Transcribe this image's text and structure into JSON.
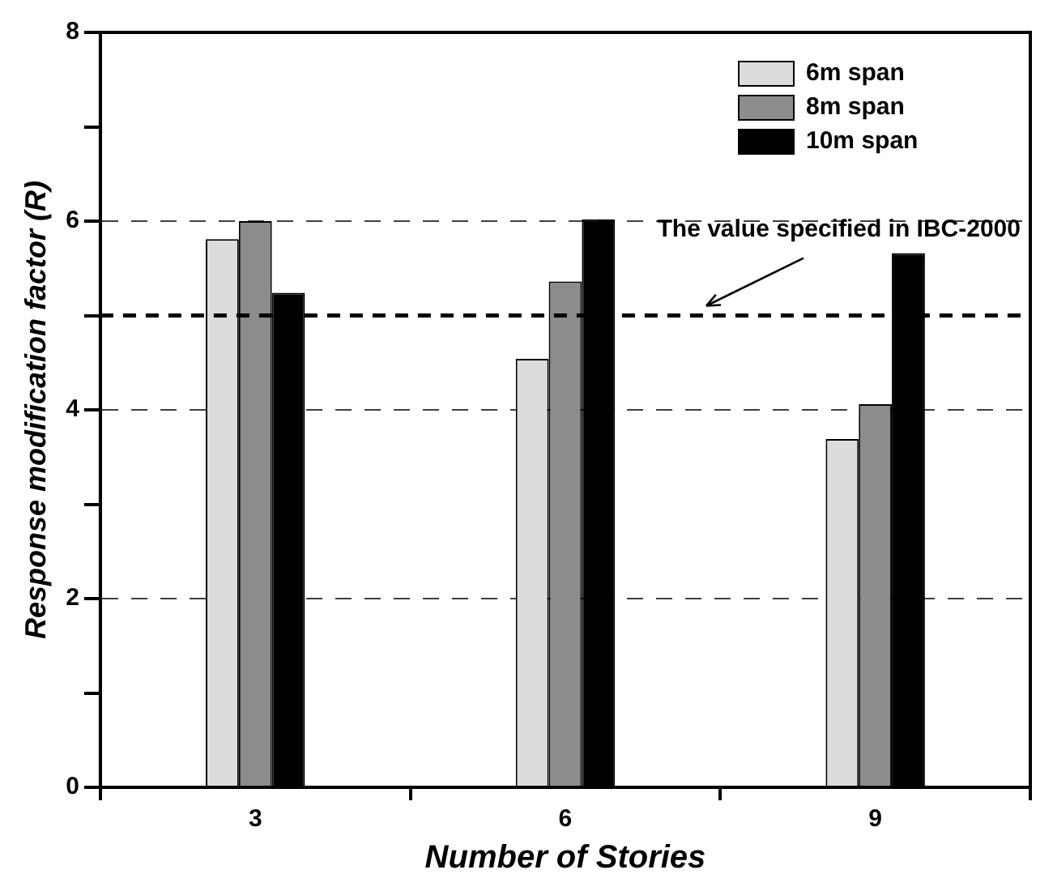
{
  "chart_data": {
    "type": "bar",
    "xlabel": "Number of Stories",
    "ylabel": "Response modification factor (R)",
    "categories": [
      "3",
      "6",
      "9"
    ],
    "series": [
      {
        "name": "6m span",
        "color": "#dcdcdc",
        "values": [
          5.81,
          4.54,
          3.69
        ]
      },
      {
        "name": "8m span",
        "color": "#8c8c8c",
        "values": [
          6.0,
          5.36,
          4.06
        ]
      },
      {
        "name": "10m span",
        "color": "#000000",
        "values": [
          5.24,
          6.02,
          5.66
        ]
      }
    ],
    "ylim": [
      0,
      8
    ],
    "yticks": [
      0,
      {
        "value": 1,
        "label": null
      },
      2,
      {
        "value": 3,
        "label": null
      },
      4,
      {
        "value": 5,
        "label": null
      },
      6,
      {
        "value": 7,
        "label": null
      },
      8
    ],
    "grid": "y",
    "legend": "top right",
    "ref_lines": [
      {
        "axis": "y",
        "value": 5,
        "label": "The value specified in IBC-2000",
        "color": "#000000",
        "line_style": "dashed"
      }
    ]
  }
}
